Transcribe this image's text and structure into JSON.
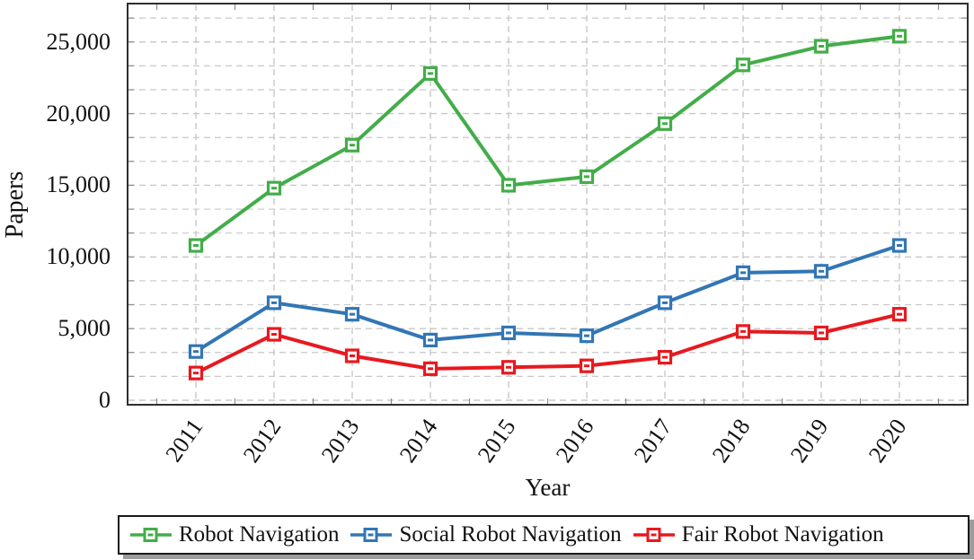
{
  "chart_data": {
    "type": "line",
    "title": "",
    "xlabel": "Year",
    "ylabel": "Papers",
    "x": [
      2011,
      2012,
      2013,
      2014,
      2015,
      2016,
      2017,
      2018,
      2019,
      2020
    ],
    "series": [
      {
        "name": "Robot Navigation",
        "color": "#43ad49",
        "values": [
          10800,
          14800,
          17800,
          22800,
          15000,
          15600,
          19300,
          23400,
          24700,
          25400
        ]
      },
      {
        "name": "Social Robot Navigation",
        "color": "#3276b5",
        "values": [
          3400,
          6800,
          6000,
          4200,
          4700,
          4500,
          6800,
          8900,
          9000,
          10800
        ]
      },
      {
        "name": "Fair Robot Navigation",
        "color": "#e7191f",
        "values": [
          1900,
          4600,
          3100,
          2200,
          2300,
          2400,
          3000,
          4800,
          4700,
          6000
        ]
      }
    ],
    "ylim": [
      0,
      27700
    ],
    "yticks": [
      0,
      5000,
      10000,
      15000,
      20000,
      25000
    ],
    "ytick_labels": [
      "0",
      "5,000",
      "10,000",
      "15,000",
      "20,000",
      "25,000"
    ],
    "minor_y_step": 1666.67,
    "grid": "dashed major+minor horizontal, dashed major vertical",
    "gridline_color": "#c8c8c8",
    "axis_border_color": "#2e2e2e",
    "marker": "square, white fill, colored border",
    "legend_position": "bottom",
    "legend_shadow_color": "#9c9c9c"
  }
}
